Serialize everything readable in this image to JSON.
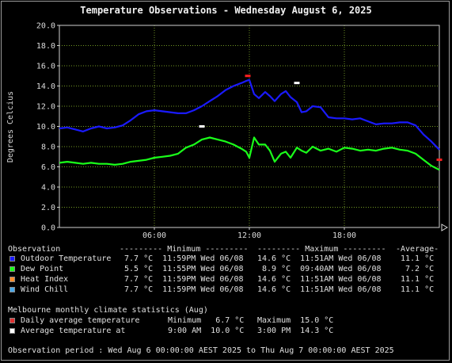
{
  "title": "Temperature Observations - Wednesday August 6, 2025",
  "chart_data": {
    "type": "line",
    "title": "Temperature Observations - Wednesday August 6, 2025",
    "xlabel": "",
    "ylabel": "Degrees Celcius",
    "xlim": [
      0,
      24
    ],
    "ylim": [
      0,
      20
    ],
    "x_tick_labels": [
      "06:00",
      "12:00",
      "18:00"
    ],
    "x_ticks": [
      6,
      12,
      18
    ],
    "y_tick_labels": [
      "0.0",
      "2.0",
      "4.0",
      "6.0",
      "8.0",
      "10.0",
      "12.0",
      "14.0",
      "16.0",
      "18.0",
      "20.0"
    ],
    "y_ticks": [
      0,
      2,
      4,
      6,
      8,
      10,
      12,
      14,
      16,
      18,
      20
    ],
    "grid": true,
    "series": [
      {
        "name": "Outdoor Temperature",
        "color": "#1a1aff",
        "x": [
          0,
          0.5,
          1,
          1.5,
          2,
          2.5,
          3,
          3.5,
          4,
          4.5,
          5,
          5.5,
          6,
          6.5,
          7,
          7.5,
          8,
          8.5,
          9,
          9.5,
          10,
          10.5,
          11,
          11.5,
          11.8,
          12,
          12.3,
          12.6,
          13,
          13.3,
          13.6,
          14,
          14.3,
          14.6,
          15,
          15.3,
          15.6,
          16,
          16.5,
          17,
          17.5,
          18,
          18.5,
          19,
          19.5,
          20,
          20.5,
          21,
          21.5,
          22,
          22.5,
          23,
          23.5,
          24
        ],
        "y": [
          9.8,
          9.9,
          9.7,
          9.5,
          9.8,
          10.0,
          9.8,
          9.9,
          10.1,
          10.6,
          11.2,
          11.5,
          11.6,
          11.5,
          11.4,
          11.3,
          11.3,
          11.6,
          12.0,
          12.5,
          13.0,
          13.6,
          14.0,
          14.3,
          14.5,
          14.6,
          13.2,
          12.8,
          13.4,
          13.0,
          12.5,
          13.2,
          13.5,
          12.9,
          12.4,
          11.4,
          11.5,
          12.0,
          11.9,
          10.9,
          10.8,
          10.8,
          10.7,
          10.8,
          10.5,
          10.2,
          10.3,
          10.3,
          10.4,
          10.4,
          10.1,
          9.2,
          8.5,
          7.7
        ]
      },
      {
        "name": "Dew Point",
        "color": "#1aff1a",
        "x": [
          0,
          0.5,
          1,
          1.5,
          2,
          2.5,
          3,
          3.5,
          4,
          4.5,
          5,
          5.5,
          6,
          6.5,
          7,
          7.5,
          8,
          8.5,
          9,
          9.5,
          10,
          10.5,
          11,
          11.5,
          11.8,
          12,
          12.3,
          12.6,
          13,
          13.3,
          13.6,
          14,
          14.3,
          14.6,
          15,
          15.3,
          15.6,
          16,
          16.5,
          17,
          17.5,
          18,
          18.5,
          19,
          19.5,
          20,
          20.5,
          21,
          21.5,
          22,
          22.5,
          23,
          23.5,
          24
        ],
        "y": [
          6.4,
          6.5,
          6.4,
          6.3,
          6.4,
          6.3,
          6.3,
          6.2,
          6.3,
          6.5,
          6.6,
          6.7,
          6.9,
          7.0,
          7.1,
          7.3,
          7.9,
          8.2,
          8.7,
          8.9,
          8.7,
          8.5,
          8.2,
          7.8,
          7.5,
          6.9,
          8.9,
          8.2,
          8.2,
          7.6,
          6.5,
          7.3,
          7.5,
          6.9,
          7.9,
          7.6,
          7.4,
          8.0,
          7.6,
          7.8,
          7.5,
          7.9,
          7.8,
          7.6,
          7.7,
          7.6,
          7.8,
          7.9,
          7.7,
          7.6,
          7.3,
          6.7,
          6.1,
          5.7
        ]
      }
    ],
    "markers": [
      {
        "name": "Daily average temperature Maximum",
        "x": 11.9,
        "y": 15.0,
        "color": "#ff2020"
      },
      {
        "name": "Daily average temperature Minimum",
        "x": 24,
        "y": 6.7,
        "color": "#ff2020"
      },
      {
        "name": "Average temperature at 3:00 PM",
        "x": 15,
        "y": 14.3,
        "color": "#ffffff"
      },
      {
        "name": "Average temperature at 9:00 AM",
        "x": 9,
        "y": 10.0,
        "color": "#ffffff"
      }
    ]
  },
  "legend": {
    "header": {
      "observation": "Observation",
      "minimum": "--------- Minimum ---------",
      "maximum": "--------- Maximum ---------",
      "average": "-Average-"
    },
    "rows": [
      {
        "name": "Outdoor Temperature",
        "color": "#1a1aff",
        "min": "7.7 °C  11:59PM Wed 06/08",
        "max": "14.6 °C  11:51AM Wed 06/08",
        "avg": "11.1 °C"
      },
      {
        "name": "Dew Point",
        "color": "#1aff1a",
        "min": "5.5 °C  11:55PM Wed 06/08",
        "max": "8.9 °C  09:40AM Wed 06/08",
        "avg": "7.2 °C"
      },
      {
        "name": "Heat Index",
        "color": "#ff8c2a",
        "min": "7.7 °C  11:59PM Wed 06/08",
        "max": "14.6 °C  11:51AM Wed 06/08",
        "avg": "11.1 °C"
      },
      {
        "name": "Wind Chill",
        "color": "#4aa8e8",
        "min": "7.7 °C  11:59PM Wed 06/08",
        "max": "14.6 °C  11:51AM Wed 06/08",
        "avg": "11.1 °C"
      }
    ]
  },
  "climate": {
    "heading": "Melbourne monthly climate statistics (Aug)",
    "rows": [
      {
        "name": "Daily average temperature",
        "color": "#e03030",
        "left": "Minimum   6.7 °C",
        "right": "Maximum  15.0 °C"
      },
      {
        "name": "Average temperature at",
        "color": "#ffffff",
        "left": "9:00 AM  10.0 °C",
        "right": "3:00 PM  14.3 °C"
      }
    ]
  },
  "period": "Observation period : Wed Aug 6 00:00:00 AEST 2025 to Thu Aug 7 00:00:00 AEST 2025"
}
